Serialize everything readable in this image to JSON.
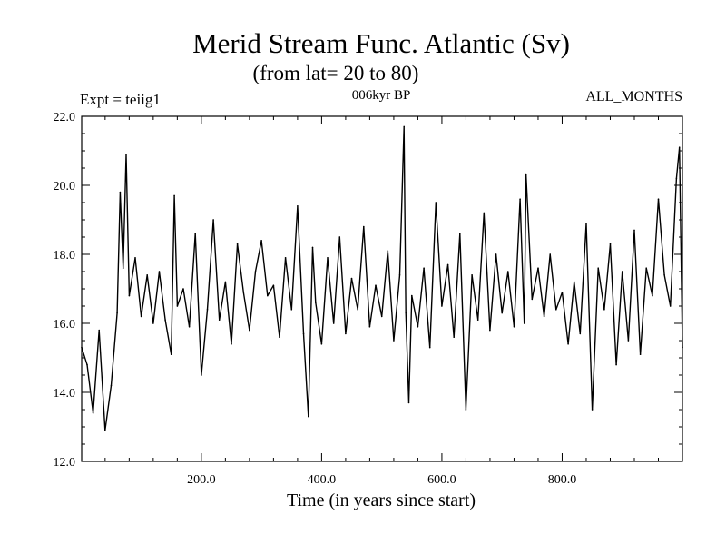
{
  "chart_data": {
    "type": "line",
    "title": "Merid Stream Func. Atlantic (Sv)",
    "subtitle": "(from lat= 20 to 80)",
    "annotations": {
      "left": "Expt = teiig1",
      "center": "006kyr BP",
      "right": "ALL_MONTHS"
    },
    "xlabel": "Time (in years since start)",
    "ylabel": "",
    "xlim": [
      1,
      1000
    ],
    "ylim": [
      12.0,
      22.0
    ],
    "x_ticks": [
      200,
      400,
      600,
      800
    ],
    "x_tick_labels": [
      "200.0",
      "400.0",
      "600.0",
      "800.0"
    ],
    "y_ticks": [
      12,
      14,
      16,
      18,
      20,
      22
    ],
    "y_tick_labels": [
      "12.0",
      "14.0",
      "16.0",
      "18.0",
      "20.0",
      "22.0"
    ],
    "grid": false,
    "series": [
      {
        "x": [
          1,
          10,
          20,
          30,
          40,
          50,
          60,
          65,
          70,
          75,
          80,
          90,
          100,
          110,
          120,
          130,
          140,
          150,
          155,
          160,
          170,
          180,
          190,
          200,
          210,
          220,
          230,
          240,
          250,
          260,
          270,
          280,
          290,
          300,
          310,
          320,
          330,
          340,
          350,
          360,
          370,
          378,
          385,
          390,
          400,
          410,
          420,
          430,
          440,
          450,
          460,
          470,
          480,
          490,
          500,
          510,
          520,
          530,
          537,
          540,
          545,
          550,
          560,
          570,
          580,
          590,
          600,
          610,
          620,
          630,
          640,
          650,
          660,
          670,
          680,
          690,
          700,
          710,
          720,
          730,
          737,
          740,
          750,
          760,
          770,
          780,
          790,
          800,
          810,
          820,
          830,
          840,
          850,
          860,
          870,
          880,
          890,
          900,
          910,
          920,
          930,
          940,
          950,
          960,
          970,
          980,
          990,
          995,
          1000
        ],
        "y": [
          15.3,
          14.8,
          13.4,
          15.8,
          12.9,
          14.2,
          16.3,
          19.8,
          17.6,
          20.9,
          16.8,
          17.9,
          16.2,
          17.4,
          16.0,
          17.5,
          16.1,
          15.1,
          19.7,
          16.5,
          17.0,
          15.9,
          18.6,
          14.5,
          16.4,
          19.0,
          16.1,
          17.2,
          15.4,
          18.3,
          16.9,
          15.8,
          17.5,
          18.4,
          16.8,
          17.1,
          15.6,
          17.9,
          16.4,
          19.4,
          15.7,
          13.3,
          18.2,
          16.6,
          15.4,
          17.9,
          16.0,
          18.5,
          15.7,
          17.3,
          16.4,
          18.8,
          15.9,
          17.1,
          16.2,
          18.1,
          15.5,
          17.4,
          21.7,
          16.3,
          13.7,
          16.8,
          15.9,
          17.6,
          15.3,
          19.5,
          16.5,
          17.7,
          15.6,
          18.6,
          13.5,
          17.4,
          16.1,
          19.2,
          15.8,
          18.0,
          16.3,
          17.5,
          15.9,
          19.6,
          16.0,
          20.3,
          16.7,
          17.6,
          16.2,
          18.0,
          16.4,
          16.9,
          15.4,
          17.2,
          15.7,
          18.9,
          13.5,
          17.6,
          16.4,
          18.3,
          14.8,
          17.5,
          15.5,
          18.7,
          15.1,
          17.6,
          16.8,
          19.6,
          17.4,
          16.5,
          20.2,
          21.1,
          15.3
        ]
      }
    ]
  }
}
